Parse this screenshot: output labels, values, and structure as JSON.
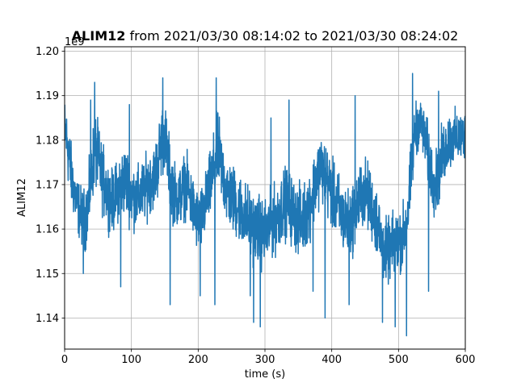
{
  "chart_data": {
    "type": "line",
    "title_bold": "ALIM12",
    "title_rest": " from 2021/03/30 08:14:02 to 2021/03/30 08:24:02",
    "xlabel": "time (s)",
    "ylabel": "ALIM12",
    "offset_text": "1e9",
    "xlim": [
      0,
      600
    ],
    "ylim": [
      1.133,
      1.201
    ],
    "xticks": [
      0,
      100,
      200,
      300,
      400,
      500,
      600
    ],
    "xtick_labels": [
      "0",
      "100",
      "200",
      "300",
      "400",
      "500",
      "600"
    ],
    "yticks": [
      1.14,
      1.15,
      1.16,
      1.17,
      1.18,
      1.19,
      1.2
    ],
    "ytick_labels": [
      "1.14",
      "1.15",
      "1.16",
      "1.17",
      "1.18",
      "1.19",
      "1.20"
    ],
    "grid": true,
    "line_color": "#1f77b4",
    "series": [
      {
        "envelope": {
          "x": [
            0,
            5,
            10,
            15,
            20,
            25,
            30,
            35,
            40,
            45,
            50,
            55,
            60,
            65,
            70,
            75,
            80,
            85,
            90,
            95,
            100,
            105,
            110,
            115,
            120,
            125,
            130,
            135,
            140,
            145,
            150,
            155,
            160,
            165,
            170,
            175,
            180,
            185,
            190,
            195,
            200,
            205,
            210,
            215,
            220,
            225,
            230,
            235,
            240,
            245,
            250,
            255,
            260,
            265,
            270,
            275,
            280,
            285,
            290,
            295,
            300,
            305,
            310,
            315,
            320,
            325,
            330,
            335,
            340,
            345,
            350,
            355,
            360,
            365,
            370,
            375,
            380,
            385,
            390,
            395,
            400,
            405,
            410,
            415,
            420,
            425,
            430,
            435,
            440,
            445,
            450,
            455,
            460,
            465,
            470,
            475,
            480,
            485,
            490,
            495,
            500,
            505,
            510,
            515,
            520,
            525,
            530,
            535,
            540,
            545,
            550,
            555,
            560,
            565,
            570,
            575,
            600
          ],
          "center": [
            1.183,
            1.178,
            1.172,
            1.168,
            1.165,
            1.163,
            1.162,
            1.165,
            1.172,
            1.178,
            1.176,
            1.172,
            1.17,
            1.168,
            1.166,
            1.167,
            1.169,
            1.17,
            1.171,
            1.17,
            1.168,
            1.167,
            1.167,
            1.168,
            1.169,
            1.17,
            1.171,
            1.172,
            1.175,
            1.18,
            1.181,
            1.175,
            1.17,
            1.168,
            1.167,
            1.168,
            1.17,
            1.169,
            1.166,
            1.163,
            1.162,
            1.162,
            1.165,
            1.168,
            1.171,
            1.175,
            1.178,
            1.174,
            1.17,
            1.168,
            1.167,
            1.166,
            1.165,
            1.164,
            1.163,
            1.162,
            1.161,
            1.16,
            1.16,
            1.159,
            1.159,
            1.16,
            1.161,
            1.162,
            1.163,
            1.165,
            1.166,
            1.166,
            1.164,
            1.163,
            1.162,
            1.162,
            1.163,
            1.165,
            1.167,
            1.17,
            1.173,
            1.174,
            1.172,
            1.17,
            1.168,
            1.166,
            1.165,
            1.163,
            1.162,
            1.161,
            1.162,
            1.164,
            1.166,
            1.168,
            1.168,
            1.167,
            1.165,
            1.163,
            1.16,
            1.157,
            1.155,
            1.155,
            1.156,
            1.157,
            1.157,
            1.158,
            1.16,
            1.165,
            1.175,
            1.182,
            1.184,
            1.183,
            1.18,
            1.176,
            1.172,
            1.17,
            1.172,
            1.176,
            1.178,
            1.18,
            1.181
          ],
          "spread": [
            0.009,
            0.011,
            0.01,
            0.009,
            0.009,
            0.009,
            0.01,
            0.01,
            0.011,
            0.012,
            0.011,
            0.011,
            0.011,
            0.01,
            0.01,
            0.01,
            0.01,
            0.011,
            0.011,
            0.011,
            0.011,
            0.01,
            0.01,
            0.01,
            0.01,
            0.01,
            0.01,
            0.01,
            0.011,
            0.012,
            0.011,
            0.011,
            0.011,
            0.01,
            0.01,
            0.01,
            0.01,
            0.01,
            0.01,
            0.01,
            0.01,
            0.01,
            0.01,
            0.01,
            0.011,
            0.012,
            0.012,
            0.011,
            0.011,
            0.011,
            0.011,
            0.011,
            0.011,
            0.011,
            0.011,
            0.011,
            0.011,
            0.011,
            0.011,
            0.011,
            0.011,
            0.011,
            0.011,
            0.011,
            0.011,
            0.011,
            0.011,
            0.011,
            0.011,
            0.011,
            0.011,
            0.011,
            0.011,
            0.011,
            0.011,
            0.011,
            0.011,
            0.011,
            0.011,
            0.011,
            0.011,
            0.011,
            0.011,
            0.011,
            0.011,
            0.011,
            0.011,
            0.011,
            0.011,
            0.011,
            0.011,
            0.011,
            0.011,
            0.011,
            0.011,
            0.011,
            0.01,
            0.01,
            0.01,
            0.01,
            0.01,
            0.01,
            0.01,
            0.01,
            0.011,
            0.009,
            0.008,
            0.008,
            0.009,
            0.01,
            0.01,
            0.01,
            0.01,
            0.01,
            0.01,
            0.009,
            0.008
          ]
        },
        "extremes": [
          {
            "x": 28,
            "y": 1.15
          },
          {
            "x": 39,
            "y": 1.189
          },
          {
            "x": 45,
            "y": 1.193
          },
          {
            "x": 84,
            "y": 1.147
          },
          {
            "x": 97,
            "y": 1.188
          },
          {
            "x": 147,
            "y": 1.194
          },
          {
            "x": 158,
            "y": 1.143
          },
          {
            "x": 203,
            "y": 1.145
          },
          {
            "x": 227,
            "y": 1.194
          },
          {
            "x": 225,
            "y": 1.143
          },
          {
            "x": 278,
            "y": 1.145
          },
          {
            "x": 283,
            "y": 1.139
          },
          {
            "x": 293,
            "y": 1.138
          },
          {
            "x": 309,
            "y": 1.185
          },
          {
            "x": 336,
            "y": 1.189
          },
          {
            "x": 372,
            "y": 1.146
          },
          {
            "x": 390,
            "y": 1.14
          },
          {
            "x": 426,
            "y": 1.143
          },
          {
            "x": 435,
            "y": 1.19
          },
          {
            "x": 476,
            "y": 1.139
          },
          {
            "x": 495,
            "y": 1.138
          },
          {
            "x": 512,
            "y": 1.136
          },
          {
            "x": 521,
            "y": 1.195
          },
          {
            "x": 545,
            "y": 1.146
          },
          {
            "x": 560,
            "y": 1.191
          }
        ]
      }
    ]
  }
}
